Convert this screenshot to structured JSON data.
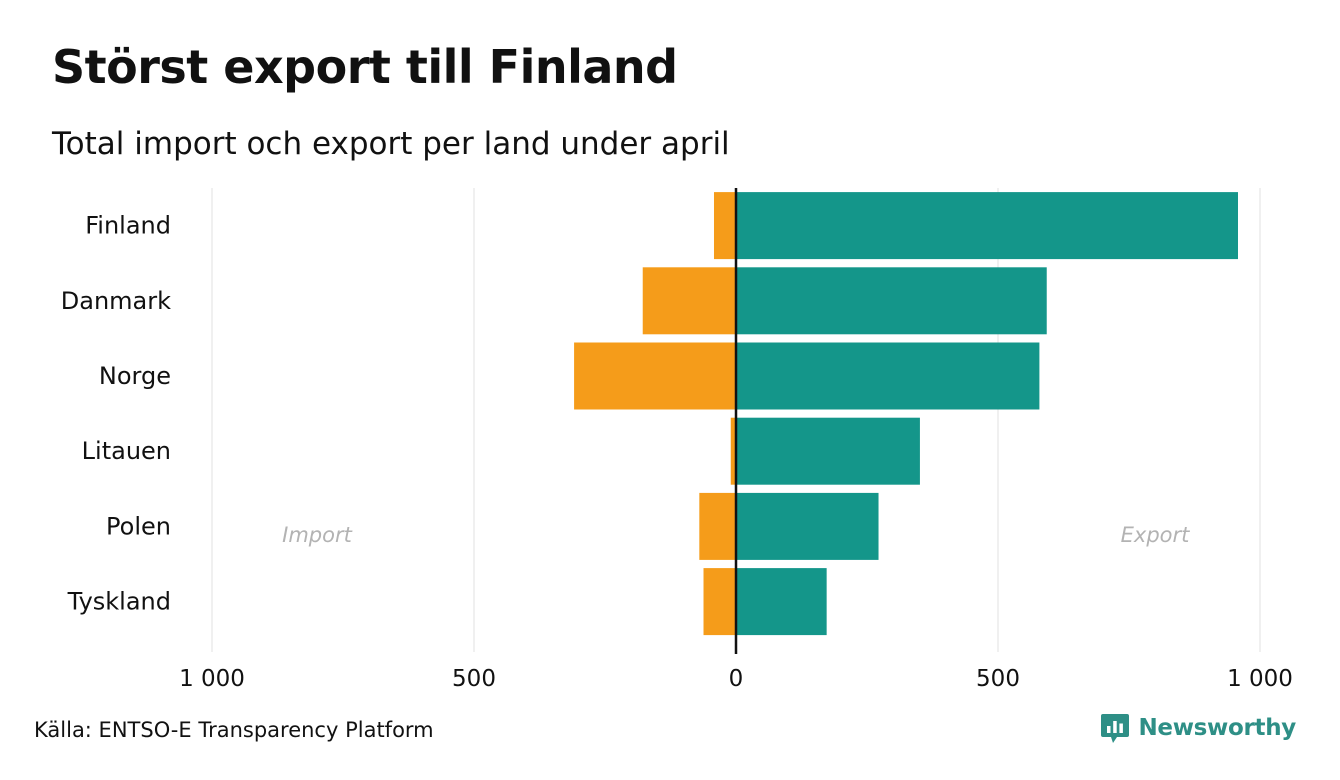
{
  "title": "Störst export till Finland",
  "subtitle": "Total import och export per land under april",
  "source": "Källa: ENTSO-E Transparency Platform",
  "brand": {
    "name": "Newsworthy",
    "color": "#2e8f86"
  },
  "colors": {
    "import": "#f59c1a",
    "export": "#14968a",
    "zero_line": "#111111",
    "grid": "#e6e6e6",
    "side_label": "#b3b3b3"
  },
  "chart_data": {
    "type": "bar",
    "orientation": "horizontal-diverging",
    "categories": [
      "Finland",
      "Danmark",
      "Norge",
      "Litauen",
      "Polen",
      "Tyskland"
    ],
    "series": [
      {
        "name": "Import",
        "values": [
          -42,
          -178,
          -309,
          -10,
          -70,
          -62
        ]
      },
      {
        "name": "Export",
        "values": [
          958,
          593,
          579,
          351,
          272,
          173
        ]
      }
    ],
    "xlim": [
      -1000,
      1000
    ],
    "xticks": [
      -1000,
      -500,
      0,
      500,
      1000
    ],
    "xtick_labels": [
      "1 000",
      "500",
      "0",
      "500",
      "1 000"
    ],
    "side_labels": {
      "left": "Import",
      "right": "Export"
    },
    "grid": true
  }
}
